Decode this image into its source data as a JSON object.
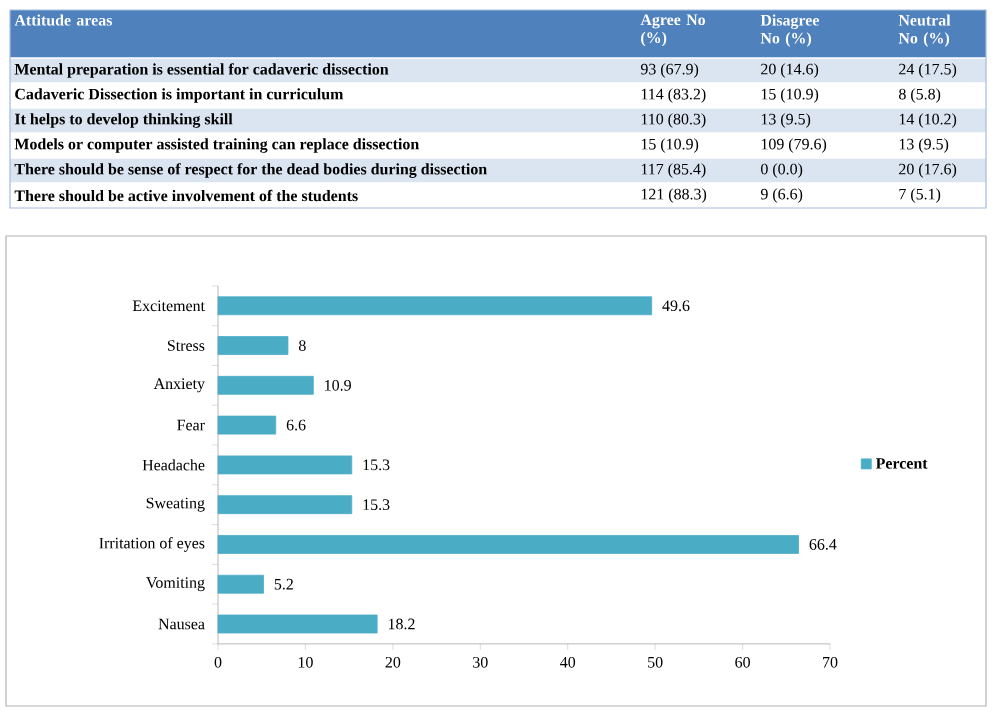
{
  "chart_data": [
    {
      "type": "other",
      "categories": [
        "Attitude areas",
        "Agree No (%)",
        "Disagree No (%)",
        "Neutral No (%)"
      ],
      "y_categories": [
        "Mental preparation  is essential for cadaveric dissection",
        "Cadaveric Dissection is important in curriculum",
        "It helps to develop thinking skill",
        "Models or computer assisted training can replace dissection",
        "There should be sense of respect for the dead bodies during dissection",
        "There should be active involvement of the students"
      ],
      "cell_labels": [
        [
          "93 (67.9)",
          "20 (14.6)",
          "24 (17.5)"
        ],
        [
          "114 (83.2)",
          "15 (10.9)",
          "8 (5.8)"
        ],
        [
          "110 (80.3)",
          "13 (9.5)",
          "14 (10.2)"
        ],
        [
          "15 (10.9)",
          "109 (79.6)",
          "13 (9.5)"
        ],
        [
          "117 (85.4)",
          "0 (0.0)",
          "20 (17.6)"
        ],
        [
          "121 (88.3)",
          "9 (6.6)",
          "7 (5.1)"
        ]
      ]
    },
    {
      "type": "bar",
      "orientation": "horizontal",
      "categories": [
        "Excitement",
        "Stress",
        "Anxiety",
        "Fear",
        "Headache",
        "Sweating",
        "Irritation of eyes",
        "Vomiting",
        "Nausea"
      ],
      "series": [
        {
          "name": "Percent",
          "color": "#4bacc6",
          "values": [
            49.6,
            8,
            10.9,
            6.6,
            15.3,
            15.3,
            66.4,
            5.2,
            18.2
          ]
        }
      ],
      "xlim": [
        0,
        70
      ],
      "xticks": [
        0,
        10,
        20,
        30,
        40,
        50,
        60,
        70
      ],
      "data_labels": true,
      "legend": "right"
    }
  ]
}
